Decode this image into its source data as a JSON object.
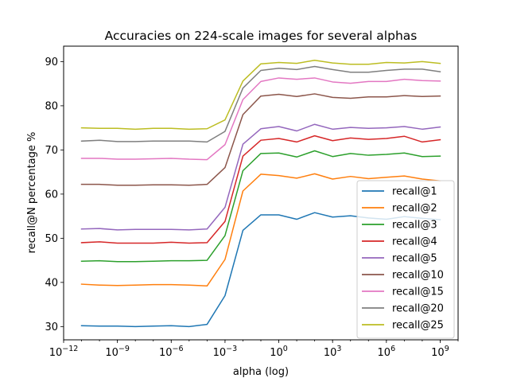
{
  "chart_data": {
    "type": "line",
    "title": "Accuracies on 224-scale images for several alphas",
    "xlabel": "alpha (log)",
    "ylabel": "recall@N percentage %",
    "xscale": "log",
    "xlim": [
      1e-12,
      10000000000.0
    ],
    "ylim": [
      27,
      93.5
    ],
    "yticks": [
      30,
      40,
      50,
      60,
      70,
      80,
      90
    ],
    "xtick_exponents": [
      -12,
      -9,
      -6,
      -3,
      0,
      3,
      6,
      9
    ],
    "grid": false,
    "legend_position": "lower right",
    "x": [
      1e-11,
      1e-10,
      1e-09,
      1e-08,
      1e-07,
      1e-06,
      1e-05,
      0.0001,
      0.001,
      0.01,
      0.1,
      1,
      10.0,
      100.0,
      1000.0,
      10000.0,
      100000.0,
      1000000.0,
      10000000.0,
      100000000.0,
      1000000000.0
    ],
    "series": [
      {
        "name": "recall@1",
        "color": "#1f77b4",
        "values": [
          30.2,
          30.1,
          30.1,
          30.0,
          30.1,
          30.2,
          30.0,
          30.5,
          37.0,
          51.8,
          55.3,
          55.3,
          54.3,
          55.8,
          54.8,
          55.1,
          54.6,
          54.3,
          54.9,
          54.5,
          54.2
        ]
      },
      {
        "name": "recall@2",
        "color": "#ff7f0e",
        "values": [
          39.6,
          39.4,
          39.3,
          39.4,
          39.5,
          39.5,
          39.4,
          39.2,
          45.2,
          60.7,
          64.5,
          64.2,
          63.6,
          64.6,
          63.4,
          64.0,
          63.5,
          63.8,
          64.1,
          63.4,
          63.0
        ]
      },
      {
        "name": "recall@3",
        "color": "#2ca02c",
        "values": [
          44.8,
          44.9,
          44.7,
          44.7,
          44.8,
          44.9,
          44.9,
          45.0,
          50.6,
          65.3,
          69.2,
          69.3,
          68.4,
          69.8,
          68.5,
          69.2,
          68.8,
          69.0,
          69.3,
          68.5,
          68.6
        ]
      },
      {
        "name": "recall@4",
        "color": "#d62728",
        "values": [
          49.0,
          49.2,
          48.9,
          48.9,
          48.9,
          49.1,
          48.9,
          49.0,
          53.8,
          68.6,
          72.2,
          72.6,
          71.8,
          73.2,
          72.1,
          72.7,
          72.4,
          72.6,
          73.1,
          71.8,
          72.3
        ]
      },
      {
        "name": "recall@5",
        "color": "#9467bd",
        "values": [
          52.1,
          52.2,
          51.9,
          52.0,
          52.0,
          52.0,
          51.9,
          52.1,
          57.0,
          71.3,
          74.8,
          75.3,
          74.3,
          75.8,
          74.7,
          75.1,
          74.9,
          75.0,
          75.3,
          74.7,
          75.2
        ]
      },
      {
        "name": "recall@10",
        "color": "#8c564b",
        "values": [
          62.2,
          62.2,
          62.0,
          62.0,
          62.1,
          62.1,
          62.0,
          62.2,
          66.0,
          78.0,
          82.2,
          82.6,
          82.1,
          82.7,
          81.9,
          81.7,
          82.0,
          82.0,
          82.3,
          82.1,
          82.2
        ]
      },
      {
        "name": "recall@15",
        "color": "#e377c2",
        "values": [
          68.1,
          68.1,
          67.9,
          67.9,
          68.0,
          68.1,
          67.9,
          67.8,
          71.2,
          81.4,
          85.5,
          86.3,
          86.0,
          86.3,
          85.4,
          85.1,
          85.5,
          85.5,
          86.0,
          85.7,
          85.6
        ]
      },
      {
        "name": "recall@20",
        "color": "#7f7f7f",
        "values": [
          72.0,
          72.2,
          71.9,
          71.9,
          72.0,
          72.0,
          72.0,
          71.8,
          74.2,
          84.0,
          88.0,
          88.5,
          88.2,
          88.9,
          88.2,
          87.6,
          87.6,
          88.0,
          88.3,
          88.3,
          87.7
        ]
      },
      {
        "name": "recall@25",
        "color": "#bcbd22",
        "values": [
          75.0,
          74.9,
          74.9,
          74.7,
          74.9,
          74.9,
          74.7,
          74.8,
          76.8,
          85.6,
          89.5,
          89.8,
          89.6,
          90.3,
          89.7,
          89.4,
          89.4,
          89.8,
          89.7,
          90.0,
          89.6
        ]
      }
    ]
  }
}
